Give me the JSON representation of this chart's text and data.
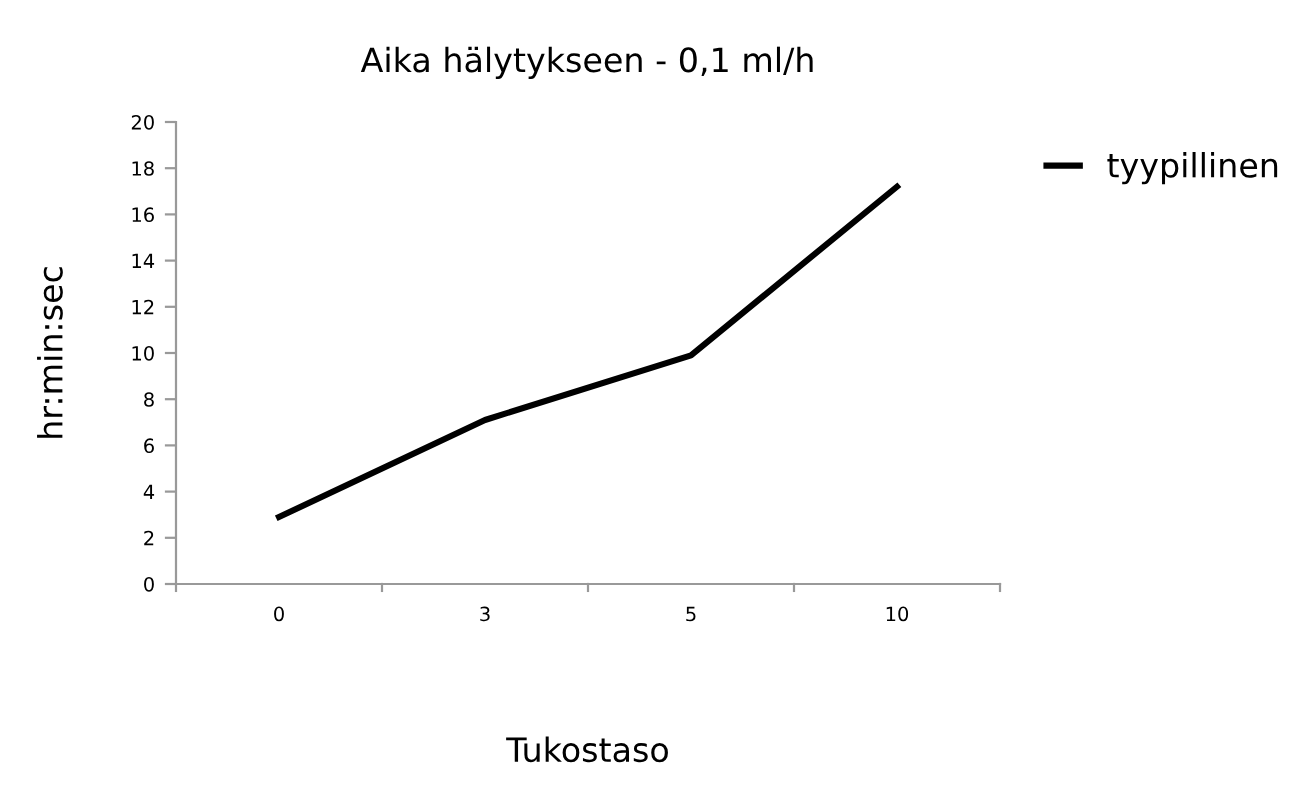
{
  "chart_data": {
    "type": "line",
    "title": "Aika hälytykseen - 0,1 ml/h",
    "xlabel": "Tukostaso",
    "ylabel": "hr:min:sec",
    "categories": [
      "0",
      "3",
      "5",
      "10"
    ],
    "series": [
      {
        "name": "tyypillinen",
        "color": "#000000",
        "values": [
          2.9,
          7.1,
          9.9,
          17.2
        ]
      }
    ],
    "ylim": [
      0,
      20
    ],
    "yticks": [
      0,
      2,
      4,
      6,
      8,
      10,
      12,
      14,
      16,
      18,
      20
    ],
    "grid": false,
    "legend": "right",
    "marker": "none",
    "line_style": "solid"
  }
}
